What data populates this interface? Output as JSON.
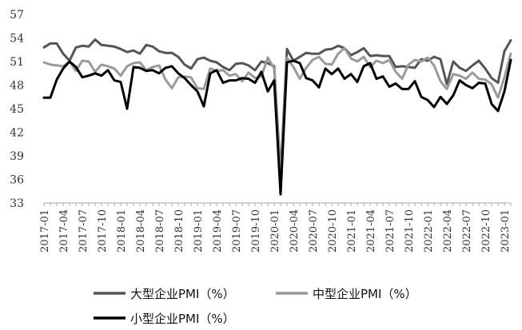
{
  "chart_data": {
    "type": "line",
    "title": "",
    "xlabel": "",
    "ylabel": "",
    "ylim": [
      33,
      57
    ],
    "yticks": [
      33,
      36,
      39,
      42,
      45,
      48,
      51,
      54,
      57
    ],
    "grid": false,
    "legend_position": "bottom",
    "x_tick_labels": [
      "2017-01",
      "2017-04",
      "2017-07",
      "2017-10",
      "2018-01",
      "2018-04",
      "2018-07",
      "2018-10",
      "2019-01",
      "2019-04",
      "2019-07",
      "2019-10",
      "2020-01",
      "2020-04",
      "2020-07",
      "2020-10",
      "2021-01",
      "2021-04",
      "2021-07",
      "2021-10",
      "2022-01",
      "2022-04",
      "2022-07",
      "2022-10",
      "2023-01"
    ],
    "x": [
      "2017-01",
      "2017-02",
      "2017-03",
      "2017-04",
      "2017-05",
      "2017-06",
      "2017-07",
      "2017-08",
      "2017-09",
      "2017-10",
      "2017-11",
      "2017-12",
      "2018-01",
      "2018-02",
      "2018-03",
      "2018-04",
      "2018-05",
      "2018-06",
      "2018-07",
      "2018-08",
      "2018-09",
      "2018-10",
      "2018-11",
      "2018-12",
      "2019-01",
      "2019-02",
      "2019-03",
      "2019-04",
      "2019-05",
      "2019-06",
      "2019-07",
      "2019-08",
      "2019-09",
      "2019-10",
      "2019-11",
      "2019-12",
      "2020-01",
      "2020-02",
      "2020-03",
      "2020-04",
      "2020-05",
      "2020-06",
      "2020-07",
      "2020-08",
      "2020-09",
      "2020-10",
      "2020-11",
      "2020-12",
      "2021-01",
      "2021-02",
      "2021-03",
      "2021-04",
      "2021-05",
      "2021-06",
      "2021-07",
      "2021-08",
      "2021-09",
      "2021-10",
      "2021-11",
      "2021-12",
      "2022-01",
      "2022-02",
      "2022-03",
      "2022-04",
      "2022-05",
      "2022-06",
      "2022-07",
      "2022-08",
      "2022-09",
      "2022-10",
      "2022-11",
      "2022-12",
      "2023-01",
      "2023-02"
    ],
    "series": [
      {
        "name": "大型企业PMI（%）",
        "color": "#555555",
        "values": [
          52.8,
          53.3,
          53.3,
          52.0,
          51.1,
          52.8,
          53.0,
          52.9,
          53.8,
          53.1,
          53.0,
          52.9,
          52.6,
          52.2,
          52.4,
          52.0,
          53.1,
          52.9,
          52.3,
          52.1,
          52.1,
          51.6,
          50.6,
          50.1,
          51.3,
          51.5,
          51.1,
          50.9,
          50.3,
          49.9,
          50.7,
          50.8,
          50.5,
          49.9,
          51.0,
          50.8,
          50.4,
          36.6,
          52.6,
          51.1,
          51.6,
          52.1,
          52.0,
          52.0,
          52.5,
          52.6,
          53.0,
          52.7,
          51.8,
          52.2,
          52.7,
          51.7,
          51.8,
          51.7,
          51.7,
          50.3,
          50.4,
          50.3,
          50.2,
          51.3,
          51.1,
          51.6,
          51.3,
          48.1,
          51.0,
          50.2,
          49.8,
          50.5,
          51.1,
          50.1,
          48.9,
          48.3,
          52.3,
          53.7
        ]
      },
      {
        "name": "中型企业PMI（%）",
        "color": "#9a9a9a",
        "values": [
          50.9,
          50.6,
          50.5,
          50.4,
          51.0,
          49.8,
          51.1,
          51.0,
          49.7,
          50.6,
          50.4,
          50.1,
          49.2,
          50.4,
          50.8,
          50.9,
          49.9,
          50.3,
          50.5,
          48.7,
          47.6,
          49.0,
          49.1,
          49.0,
          47.6,
          47.5,
          50.1,
          49.8,
          49.9,
          49.2,
          49.4,
          48.5,
          49.6,
          48.9,
          49.1,
          51.5,
          50.1,
          35.5,
          51.5,
          50.3,
          48.8,
          50.2,
          51.2,
          51.6,
          50.7,
          50.6,
          52.0,
          52.7,
          51.4,
          51.0,
          51.6,
          50.3,
          51.1,
          50.8,
          51.2,
          49.7,
          48.8,
          50.6,
          51.2,
          51.0,
          51.5,
          50.5,
          48.5,
          47.5,
          49.4,
          49.2,
          48.8,
          49.6,
          48.8,
          48.7,
          48.1,
          46.4,
          49.0,
          52.0
        ]
      },
      {
        "name": "小型企业PMI（%）",
        "color": "#000000",
        "values": [
          46.4,
          46.4,
          48.7,
          50.1,
          51.0,
          50.3,
          49.0,
          49.2,
          49.5,
          49.2,
          49.9,
          48.6,
          48.4,
          45.0,
          50.3,
          50.2,
          49.8,
          49.9,
          49.5,
          50.2,
          50.4,
          49.5,
          48.9,
          48.0,
          47.2,
          45.3,
          49.5,
          49.9,
          48.3,
          48.6,
          48.6,
          48.9,
          48.8,
          48.3,
          49.7,
          47.2,
          48.6,
          34.1,
          50.9,
          51.1,
          50.8,
          48.9,
          48.6,
          47.7,
          50.1,
          49.4,
          50.1,
          48.8,
          49.4,
          48.4,
          50.4,
          50.8,
          48.8,
          49.1,
          47.8,
          48.2,
          47.5,
          47.5,
          48.5,
          46.5,
          46.1,
          45.2,
          46.5,
          45.6,
          46.7,
          48.6,
          48.0,
          47.6,
          48.3,
          48.2,
          45.6,
          44.7,
          47.2,
          51.2
        ]
      }
    ]
  }
}
